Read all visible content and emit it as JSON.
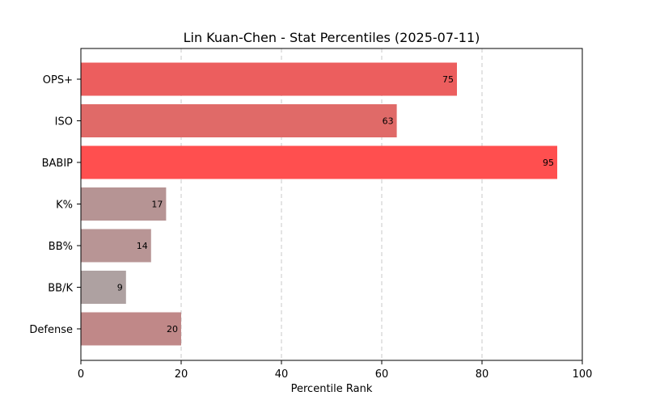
{
  "chart_data": {
    "type": "bar",
    "orientation": "horizontal",
    "title": "Lin Kuan-Chen - Stat Percentiles (2025-07-11)",
    "xlabel": "Percentile Rank",
    "ylabel": "",
    "xlim": [
      0,
      100
    ],
    "xticks": [
      0,
      20,
      40,
      60,
      80,
      100
    ],
    "grid": "x-dashed",
    "categories": [
      "OPS+",
      "ISO",
      "BABIP",
      "K%",
      "BB%",
      "BB/K",
      "Defense"
    ],
    "values": [
      75,
      63,
      95,
      17,
      14,
      9,
      20
    ],
    "bar_colors": [
      "#ec5e5e",
      "#e06a68",
      "#ff4f4f",
      "#b69494",
      "#b89595",
      "#aea1a1",
      "#c08888"
    ],
    "data_labels": [
      "75",
      "63",
      "95",
      "17",
      "14",
      "9",
      "20"
    ]
  }
}
